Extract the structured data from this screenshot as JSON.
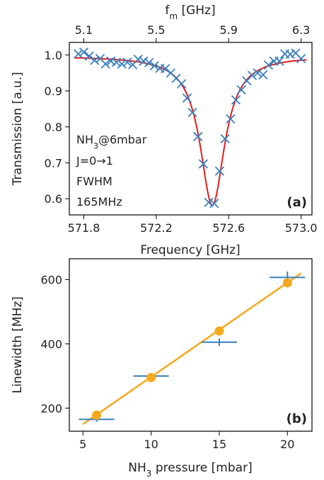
{
  "chart_data": [
    {
      "panel": "(a)",
      "type": "scatter",
      "xlabel": "Frequency [GHz]",
      "ylabel": "Transmission [a.u.]",
      "top_xlabel": "f",
      "top_xlabel_sub": "m",
      "top_xlabel_unit": " [GHz]",
      "xlim": [
        571.72,
        573.06
      ],
      "ylim": [
        0.555,
        1.035
      ],
      "xticks": [
        571.8,
        572.2,
        572.6,
        573.0
      ],
      "xtick_labels": [
        "571.8",
        "572.2",
        "572.6",
        "573.0"
      ],
      "yticks": [
        0.6,
        0.7,
        0.8,
        0.9,
        1.0
      ],
      "ytick_labels": [
        "0.6",
        "0.7",
        "0.8",
        "0.9",
        "1.0"
      ],
      "top_xticks": [
        571.8,
        572.2,
        572.6,
        573.0
      ],
      "top_xtick_labels": [
        "5.1",
        "5.5",
        "5.9",
        "6.3"
      ],
      "grid": false,
      "marker_color": "#3a80bc",
      "fit_color": "#e8191c",
      "annotation_lines": [
        "NH",
        "3",
        "@6mbar",
        "J=0→1",
        "FWHM",
        "165MHz"
      ],
      "series": [
        {
          "marker": "x",
          "x": [
            571.77,
            571.8,
            571.83,
            571.86,
            571.89,
            571.92,
            571.95,
            571.98,
            572.01,
            572.04,
            572.07,
            572.1,
            572.13,
            572.16,
            572.19,
            572.22,
            572.25,
            572.28,
            572.31,
            572.34,
            572.37,
            572.4,
            572.43,
            572.46,
            572.49,
            572.52,
            572.55,
            572.58,
            572.61,
            572.64,
            572.67,
            572.7,
            572.73,
            572.76,
            572.79,
            572.82,
            572.85,
            572.88,
            572.91,
            572.94,
            572.97,
            573.0
          ],
          "y": [
            1.003,
            1.008,
            0.997,
            0.985,
            0.99,
            0.975,
            0.983,
            0.98,
            0.975,
            0.98,
            0.973,
            0.988,
            0.983,
            0.979,
            0.97,
            0.963,
            0.962,
            0.95,
            0.935,
            0.92,
            0.88,
            0.84,
            0.773,
            0.697,
            0.59,
            0.587,
            0.677,
            0.767,
            0.822,
            0.875,
            0.903,
            0.928,
            0.943,
            0.95,
            0.945,
            0.972,
            0.983,
            0.983,
            1.003,
            1.002,
            1.005,
            0.99
          ]
        },
        {
          "type": "line",
          "model": "lorentzian",
          "baseline": 0.997,
          "depth": 0.415,
          "center": 572.51,
          "fwhm": 0.165
        }
      ]
    },
    {
      "panel": "(b)",
      "type": "scatter",
      "xlabel_main": "NH",
      "xlabel_sub": "3",
      "xlabel_rest": " pressure [mbar]",
      "ylabel": "Linewidth [MHz]",
      "xlim": [
        4.0,
        21.8
      ],
      "ylim": [
        128,
        665
      ],
      "xticks": [
        5,
        10,
        15,
        20
      ],
      "xtick_labels": [
        "5",
        "10",
        "15",
        "20"
      ],
      "yticks": [
        200,
        400,
        600
      ],
      "ytick_labels": [
        "200",
        "400",
        "600"
      ],
      "grid": false,
      "errorbar_color": "#3a80bc",
      "point_color": "#f5a81c",
      "fit_color": "#f5a81c",
      "series": [
        {
          "marker": "errorbar",
          "x": [
            6,
            10,
            15,
            20
          ],
          "y": [
            165,
            300,
            405,
            607
          ],
          "xerr": [
            1.3,
            1.3,
            1.3,
            1.3
          ],
          "yerr": [
            8,
            8,
            12,
            18
          ]
        },
        {
          "marker": "o",
          "x": [
            6,
            10,
            15,
            20
          ],
          "y": [
            178,
            295,
            440,
            590
          ]
        },
        {
          "type": "line",
          "x": [
            5,
            21
          ],
          "y": [
            150,
            620
          ]
        }
      ]
    }
  ]
}
